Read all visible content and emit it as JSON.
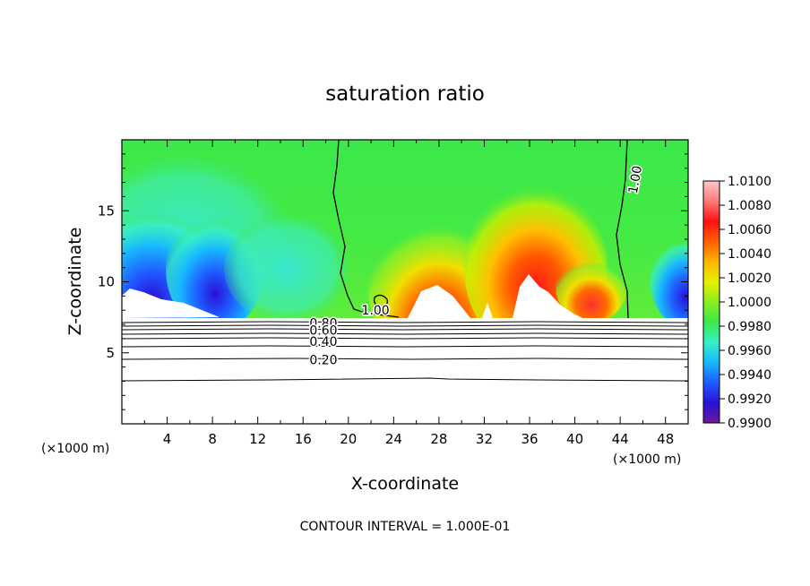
{
  "chart_data": {
    "type": "heatmap",
    "title": "saturation ratio",
    "xlabel": "X-coordinate",
    "ylabel": "Z-coordinate",
    "x_unit_left": "(×1000 m)",
    "x_unit_right": "(×1000 m)",
    "footer": "CONTOUR INTERVAL = 1.000E-01",
    "xlim": [
      0,
      50
    ],
    "ylim": [
      0,
      20
    ],
    "x_ticks": [
      4,
      8,
      12,
      16,
      20,
      24,
      28,
      32,
      36,
      40,
      44,
      48
    ],
    "y_ticks": [
      5,
      10,
      15
    ],
    "colorbar": {
      "ticks": [
        "1.0100",
        "1.0080",
        "1.0060",
        "1.0040",
        "1.0020",
        "1.0000",
        "0.9980",
        "0.9960",
        "0.9940",
        "0.9920",
        "0.9900"
      ],
      "range": [
        0.99,
        1.01
      ],
      "colors": [
        "#6a1a9a",
        "#2a10d8",
        "#1f5cff",
        "#18b8ff",
        "#38f0c8",
        "#3ce84a",
        "#8aef20",
        "#e6f000",
        "#ffb400",
        "#ff6000",
        "#ff1010",
        "#ff7a7a",
        "#ffc8c8"
      ]
    },
    "contour_labels": [
      {
        "text": "1.00",
        "x": 22.4,
        "z": 8.0
      },
      {
        "text": "1.00",
        "x": 45.3,
        "z": 17.2
      },
      {
        "text": "0.80",
        "x": 17.8,
        "z": 7.1
      },
      {
        "text": "0.60",
        "x": 17.8,
        "z": 6.6
      },
      {
        "text": "0.40",
        "x": 17.8,
        "z": 5.8
      },
      {
        "text": "0.20",
        "x": 17.8,
        "z": 4.5
      }
    ],
    "contour_levels_below_cloud": [
      0.2,
      0.4,
      0.6,
      0.8
    ]
  }
}
